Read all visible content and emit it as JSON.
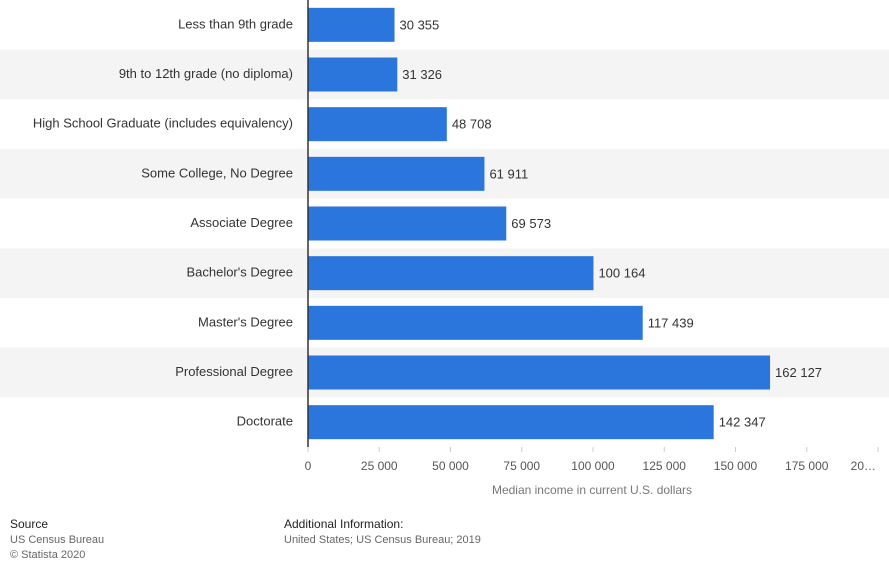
{
  "chart_data": {
    "type": "bar",
    "orientation": "horizontal",
    "categories": [
      "Less than 9th grade",
      "9th to 12th grade (no diploma)",
      "High School Graduate (includes equivalency)",
      "Some College, No Degree",
      "Associate Degree",
      "Bachelor's Degree",
      "Master's Degree",
      "Professional Degree",
      "Doctorate"
    ],
    "values": [
      30355,
      31326,
      48708,
      61911,
      69573,
      100164,
      117439,
      162127,
      142347
    ],
    "value_labels": [
      "30 355",
      "31 326",
      "48 708",
      "61 911",
      "69 573",
      "100 164",
      "117 439",
      "162 127",
      "142 347"
    ],
    "color": "#2a76dd",
    "xlabel": "Median income in current U.S. dollars",
    "xlim": [
      0,
      200000
    ],
    "xticks": [
      0,
      {
        "value": 25000,
        "label": "25 000"
      },
      {
        "value": 50000,
        "label": "50 000"
      },
      {
        "value": 75000,
        "label": "75 000"
      },
      {
        "value": 100000,
        "label": "100 000"
      },
      {
        "value": 125000,
        "label": "125 000"
      },
      {
        "value": 150000,
        "label": "150 000"
      },
      {
        "value": 175000,
        "label": "175 000"
      },
      {
        "value": 200000,
        "label": "20…"
      }
    ],
    "grid": false
  },
  "footer": {
    "source_heading": "Source",
    "source": "US Census Bureau",
    "copyright": "© Statista 2020",
    "info_heading": "Additional Information:",
    "info": "United States; US Census Bureau; 2019"
  }
}
